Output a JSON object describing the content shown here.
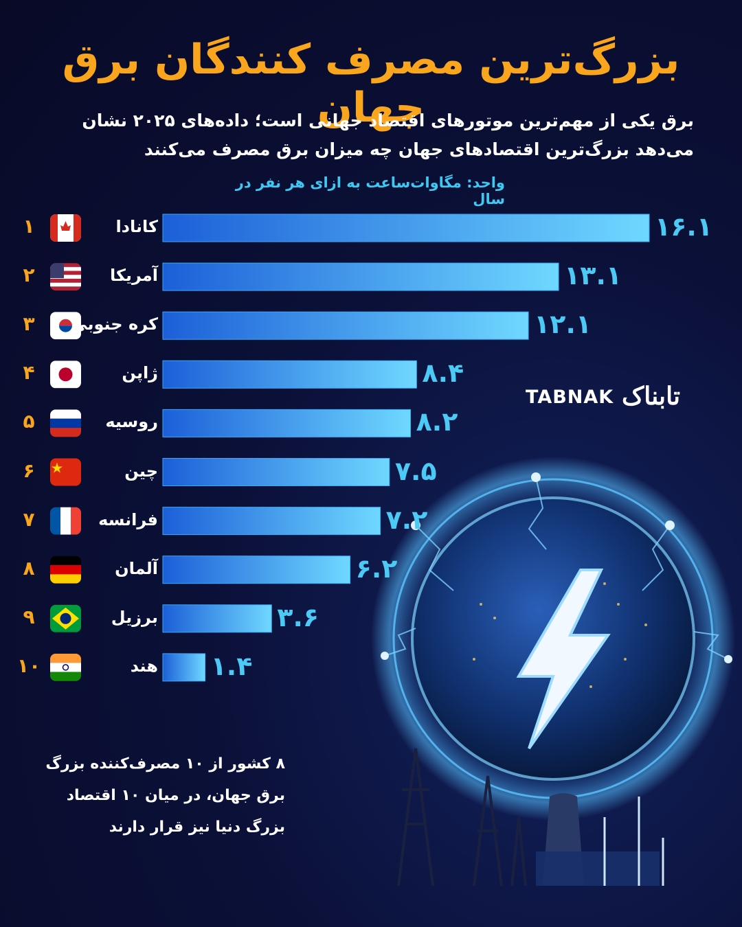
{
  "chart_data": {
    "type": "bar",
    "title": "بزرگ‌ترین مصرف کنندگان برق جهان",
    "subtitle": "برق یکی از مهم‌ترین موتورهای اقتصاد جهانی است؛ داده‌های ۲۰۲۵ نشان می‌دهد بزرگ‌ترین اقتصادهای جهان چه میزان برق مصرف می‌کنند",
    "unit": "واحد: مگاوات‌ساعت به ازای هر نفر در سال",
    "ranks": [
      "۱",
      "۲",
      "۳",
      "۴",
      "۵",
      "۶",
      "۷",
      "۸",
      "۹",
      "۱۰"
    ],
    "categories": [
      "کانادا",
      "آمریکا",
      "کره جنوبی",
      "ژاپن",
      "روسیه",
      "چین",
      "فرانسه",
      "آلمان",
      "برزیل",
      "هند"
    ],
    "values": [
      16.1,
      13.1,
      12.1,
      8.4,
      8.2,
      7.5,
      7.2,
      6.2,
      3.6,
      1.4
    ],
    "value_labels": [
      "۱۶.۱",
      "۱۳.۱",
      "۱۲.۱",
      "۸.۴",
      "۸.۲",
      "۷.۵",
      "۷.۲",
      "۶.۲",
      "۳.۶",
      "۱.۴"
    ],
    "color": "#3aa8f5",
    "annotation": "۸ کشور از ۱۰ مصرف‌کننده بزرگ برق جهان، در میان ۱۰ اقتصاد بزرگ دنیا نیز قرار دارند"
  },
  "brand": {
    "latin": "TABNAK",
    "persian": "تابناک"
  }
}
